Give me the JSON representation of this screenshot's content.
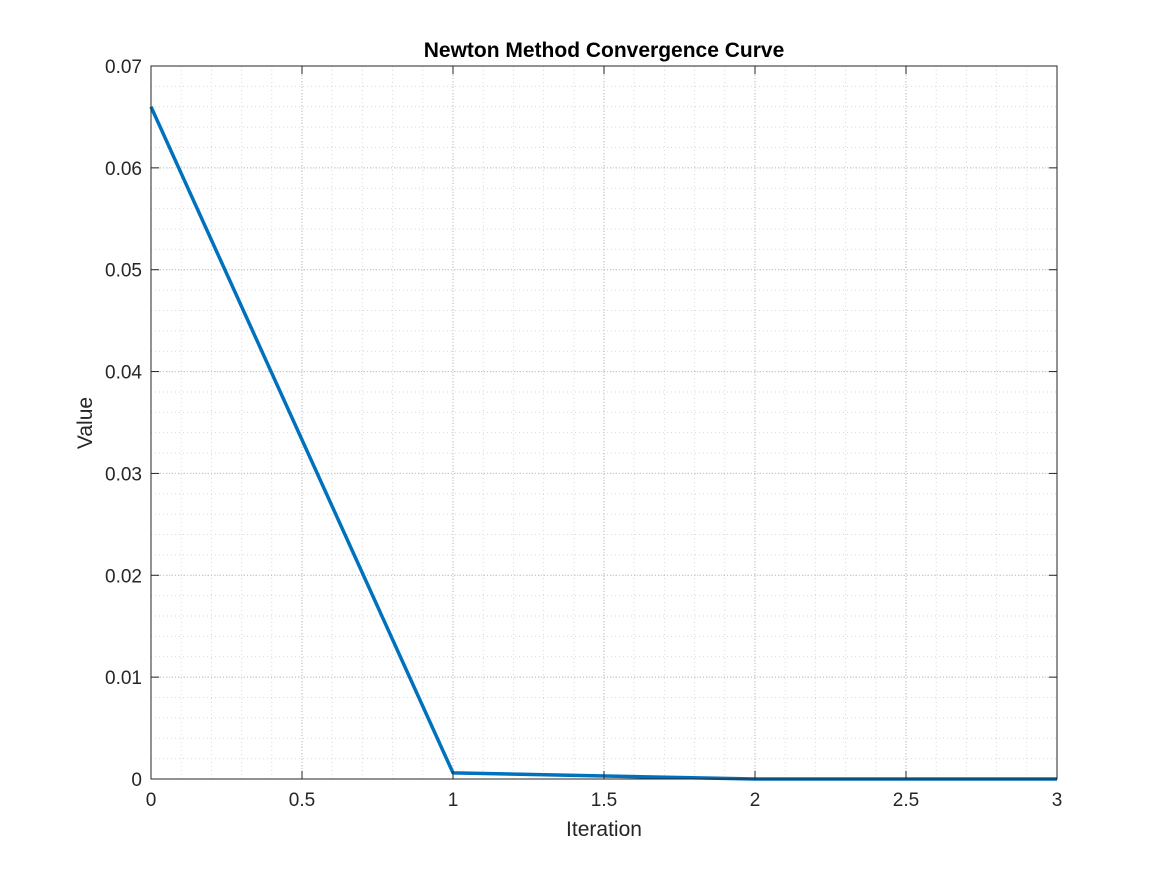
{
  "chart_data": {
    "type": "line",
    "title": "Newton Method Convergence Curve",
    "xlabel": "Iteration",
    "ylabel": "Value",
    "xlim": [
      0,
      3
    ],
    "ylim": [
      0,
      0.07
    ],
    "xticks": [
      0,
      0.5,
      1,
      1.5,
      2,
      2.5,
      3
    ],
    "xtick_labels": [
      "0",
      "0.5",
      "1",
      "1.5",
      "2",
      "2.5",
      "3"
    ],
    "yticks": [
      0,
      0.01,
      0.02,
      0.03,
      0.04,
      0.05,
      0.06,
      0.07
    ],
    "ytick_labels": [
      "0",
      "0.01",
      "0.02",
      "0.03",
      "0.04",
      "0.05",
      "0.06",
      "0.07"
    ],
    "grid": true,
    "minor_grid": true,
    "series": [
      {
        "x": [
          0,
          1,
          2,
          3
        ],
        "y": [
          0.066,
          0.0006,
          0.0,
          0.0
        ],
        "color": "#0072BD"
      }
    ]
  }
}
